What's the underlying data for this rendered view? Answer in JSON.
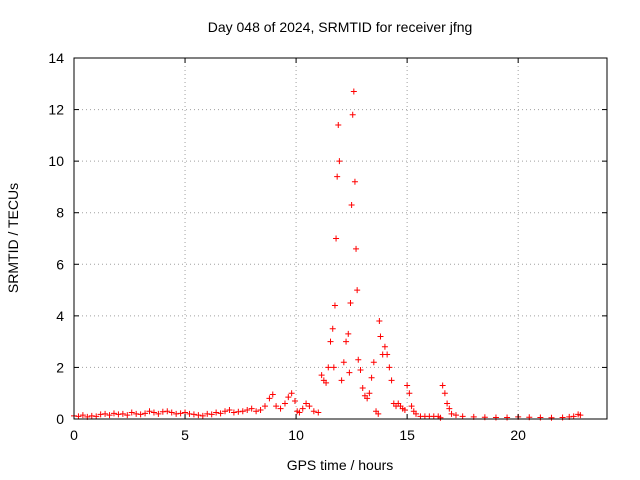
{
  "chart_data": {
    "type": "scatter",
    "title": "Day 048 of 2024, SRMTID for receiver jfng",
    "xlabel": "GPS time / hours",
    "ylabel": "SRMTID / TECUs",
    "xlim": [
      0,
      24
    ],
    "ylim": [
      0,
      14
    ],
    "xticks": [
      0,
      5,
      10,
      15,
      20
    ],
    "yticks": [
      0,
      2,
      4,
      6,
      8,
      10,
      12,
      14
    ],
    "grid": true,
    "marker": "+",
    "marker_color": "#ff0000",
    "series": [
      {
        "name": "SRMTID",
        "x": [
          0.0,
          0.2,
          0.4,
          0.6,
          0.8,
          1.0,
          1.2,
          1.4,
          1.6,
          1.8,
          2.0,
          2.2,
          2.4,
          2.6,
          2.8,
          3.0,
          3.2,
          3.4,
          3.6,
          3.8,
          4.0,
          4.2,
          4.4,
          4.6,
          4.8,
          5.0,
          5.2,
          5.4,
          5.6,
          5.8,
          6.0,
          6.2,
          6.4,
          6.6,
          6.8,
          7.0,
          7.2,
          7.4,
          7.6,
          7.8,
          8.0,
          8.2,
          8.4,
          8.6,
          8.8,
          8.95,
          9.1,
          9.3,
          9.5,
          9.65,
          9.8,
          9.95,
          10.05,
          10.15,
          10.3,
          10.45,
          10.6,
          10.8,
          11.0,
          11.15,
          11.25,
          11.35,
          11.45,
          11.55,
          11.65,
          11.7,
          11.75,
          11.8,
          11.85,
          11.9,
          11.95,
          12.05,
          12.15,
          12.25,
          12.35,
          12.4,
          12.45,
          12.5,
          12.55,
          12.6,
          12.65,
          12.7,
          12.75,
          12.8,
          12.9,
          13.0,
          13.1,
          13.2,
          13.3,
          13.4,
          13.5,
          13.6,
          13.7,
          13.75,
          13.8,
          13.9,
          14.0,
          14.1,
          14.2,
          14.3,
          14.4,
          14.5,
          14.6,
          14.7,
          14.8,
          14.9,
          15.0,
          15.1,
          15.2,
          15.3,
          15.4,
          15.6,
          15.8,
          16.0,
          16.2,
          16.4,
          16.5,
          16.6,
          16.7,
          16.8,
          16.9,
          17.0,
          17.2,
          17.5,
          18.0,
          18.5,
          19.0,
          19.5,
          20.0,
          20.5,
          21.0,
          21.5,
          22.0,
          22.3,
          22.5,
          22.7,
          22.8
        ],
        "y": [
          0.12,
          0.1,
          0.15,
          0.08,
          0.12,
          0.1,
          0.18,
          0.2,
          0.15,
          0.22,
          0.18,
          0.2,
          0.15,
          0.25,
          0.2,
          0.18,
          0.22,
          0.3,
          0.25,
          0.2,
          0.28,
          0.3,
          0.25,
          0.2,
          0.22,
          0.25,
          0.2,
          0.18,
          0.15,
          0.12,
          0.2,
          0.18,
          0.25,
          0.22,
          0.3,
          0.35,
          0.25,
          0.28,
          0.3,
          0.35,
          0.4,
          0.3,
          0.35,
          0.5,
          0.8,
          0.95,
          0.5,
          0.4,
          0.6,
          0.85,
          1.0,
          0.7,
          0.3,
          0.25,
          0.4,
          0.6,
          0.5,
          0.3,
          0.25,
          1.7,
          1.5,
          1.4,
          2.0,
          3.0,
          3.5,
          2.0,
          4.4,
          7.0,
          9.4,
          11.4,
          10.0,
          1.5,
          2.2,
          3.0,
          3.3,
          1.8,
          4.5,
          8.3,
          11.8,
          12.7,
          9.2,
          6.6,
          5.0,
          2.3,
          1.9,
          1.2,
          0.9,
          0.8,
          1.0,
          1.6,
          2.2,
          0.3,
          0.2,
          3.8,
          3.2,
          2.5,
          2.8,
          2.5,
          2.0,
          1.5,
          0.6,
          0.5,
          0.6,
          0.5,
          0.4,
          0.35,
          1.3,
          1.0,
          0.5,
          0.3,
          0.2,
          0.1,
          0.1,
          0.1,
          0.1,
          0.1,
          0.05,
          1.3,
          1.0,
          0.6,
          0.4,
          0.2,
          0.15,
          0.1,
          0.08,
          0.07,
          0.06,
          0.06,
          0.08,
          0.07,
          0.06,
          0.05,
          0.06,
          0.08,
          0.1,
          0.18,
          0.15
        ]
      }
    ]
  }
}
